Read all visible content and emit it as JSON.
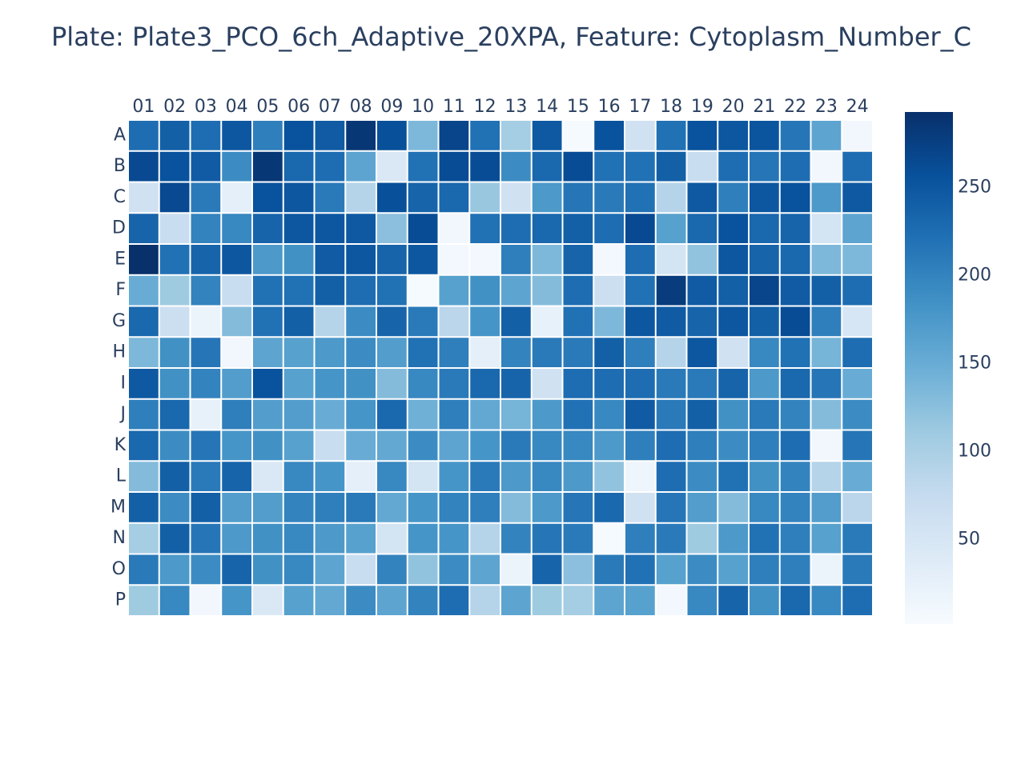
{
  "chart_data": {
    "type": "heatmap",
    "title": "Plate: Plate3_PCO_6ch_Adaptive_20XPA, Feature: Cytoplasm_Number_C",
    "x": [
      "01",
      "02",
      "03",
      "04",
      "05",
      "06",
      "07",
      "08",
      "09",
      "10",
      "11",
      "12",
      "13",
      "14",
      "15",
      "16",
      "17",
      "18",
      "19",
      "20",
      "21",
      "22",
      "23",
      "24"
    ],
    "y": [
      "A",
      "B",
      "C",
      "D",
      "E",
      "F",
      "G",
      "H",
      "I",
      "J",
      "K",
      "L",
      "M",
      "N",
      "O",
      "P"
    ],
    "z": [
      [
        225,
        240,
        225,
        250,
        205,
        255,
        245,
        285,
        258,
        135,
        270,
        220,
        105,
        248,
        5,
        255,
        60,
        220,
        255,
        250,
        252,
        215,
        160,
        10
      ],
      [
        265,
        255,
        245,
        190,
        285,
        230,
        225,
        160,
        45,
        220,
        262,
        262,
        190,
        230,
        262,
        220,
        220,
        240,
        70,
        225,
        215,
        225,
        10,
        225
      ],
      [
        60,
        265,
        210,
        30,
        255,
        250,
        210,
        90,
        258,
        235,
        230,
        115,
        60,
        175,
        215,
        210,
        220,
        90,
        248,
        205,
        250,
        255,
        175,
        248
      ],
      [
        235,
        70,
        200,
        195,
        235,
        250,
        250,
        248,
        125,
        262,
        10,
        220,
        225,
        230,
        240,
        225,
        265,
        165,
        230,
        255,
        230,
        235,
        55,
        160
      ],
      [
        293,
        220,
        235,
        250,
        175,
        185,
        245,
        250,
        235,
        250,
        8,
        8,
        205,
        135,
        235,
        8,
        225,
        55,
        120,
        250,
        235,
        230,
        135,
        135
      ],
      [
        150,
        110,
        200,
        70,
        220,
        220,
        240,
        225,
        220,
        5,
        165,
        185,
        160,
        130,
        225,
        65,
        220,
        280,
        245,
        240,
        270,
        245,
        240,
        225
      ],
      [
        230,
        65,
        20,
        130,
        220,
        240,
        90,
        190,
        235,
        210,
        85,
        180,
        240,
        25,
        220,
        135,
        250,
        245,
        235,
        250,
        240,
        262,
        205,
        50
      ],
      [
        135,
        185,
        215,
        10,
        160,
        165,
        175,
        190,
        170,
        220,
        205,
        30,
        200,
        210,
        210,
        240,
        205,
        90,
        250,
        60,
        195,
        220,
        140,
        225
      ],
      [
        248,
        185,
        200,
        170,
        255,
        165,
        180,
        185,
        130,
        195,
        210,
        230,
        235,
        60,
        225,
        225,
        225,
        210,
        210,
        235,
        175,
        230,
        215,
        150
      ],
      [
        205,
        230,
        25,
        205,
        170,
        170,
        150,
        180,
        230,
        145,
        205,
        155,
        140,
        175,
        220,
        195,
        245,
        210,
        240,
        185,
        210,
        200,
        130,
        190
      ],
      [
        230,
        190,
        215,
        180,
        185,
        165,
        70,
        150,
        155,
        190,
        160,
        180,
        210,
        195,
        195,
        175,
        205,
        225,
        205,
        190,
        205,
        225,
        10,
        215
      ],
      [
        130,
        240,
        210,
        235,
        45,
        195,
        180,
        30,
        195,
        55,
        180,
        210,
        175,
        195,
        175,
        120,
        15,
        225,
        190,
        220,
        185,
        200,
        90,
        150
      ],
      [
        240,
        190,
        240,
        170,
        170,
        200,
        205,
        210,
        155,
        180,
        200,
        205,
        130,
        175,
        215,
        230,
        60,
        215,
        170,
        130,
        195,
        200,
        170,
        85
      ],
      [
        105,
        240,
        215,
        175,
        185,
        195,
        175,
        165,
        55,
        180,
        180,
        90,
        200,
        215,
        210,
        5,
        205,
        210,
        110,
        175,
        220,
        205,
        165,
        210
      ],
      [
        210,
        175,
        190,
        235,
        185,
        195,
        160,
        70,
        200,
        120,
        190,
        160,
        20,
        235,
        125,
        210,
        220,
        165,
        190,
        165,
        205,
        205,
        20,
        210
      ],
      [
        110,
        195,
        10,
        180,
        45,
        165,
        155,
        190,
        160,
        200,
        225,
        90,
        160,
        110,
        105,
        160,
        165,
        8,
        195,
        235,
        185,
        230,
        195,
        225
      ]
    ],
    "zlim": [
      2,
      293
    ],
    "colorbar_ticks": [
      50,
      100,
      150,
      200,
      250
    ],
    "colorscale": [
      "#f7fbff",
      "#deebf7",
      "#c6dbef",
      "#9ecae1",
      "#6baed6",
      "#4292c6",
      "#2171b5",
      "#08519c",
      "#08306b"
    ]
  }
}
